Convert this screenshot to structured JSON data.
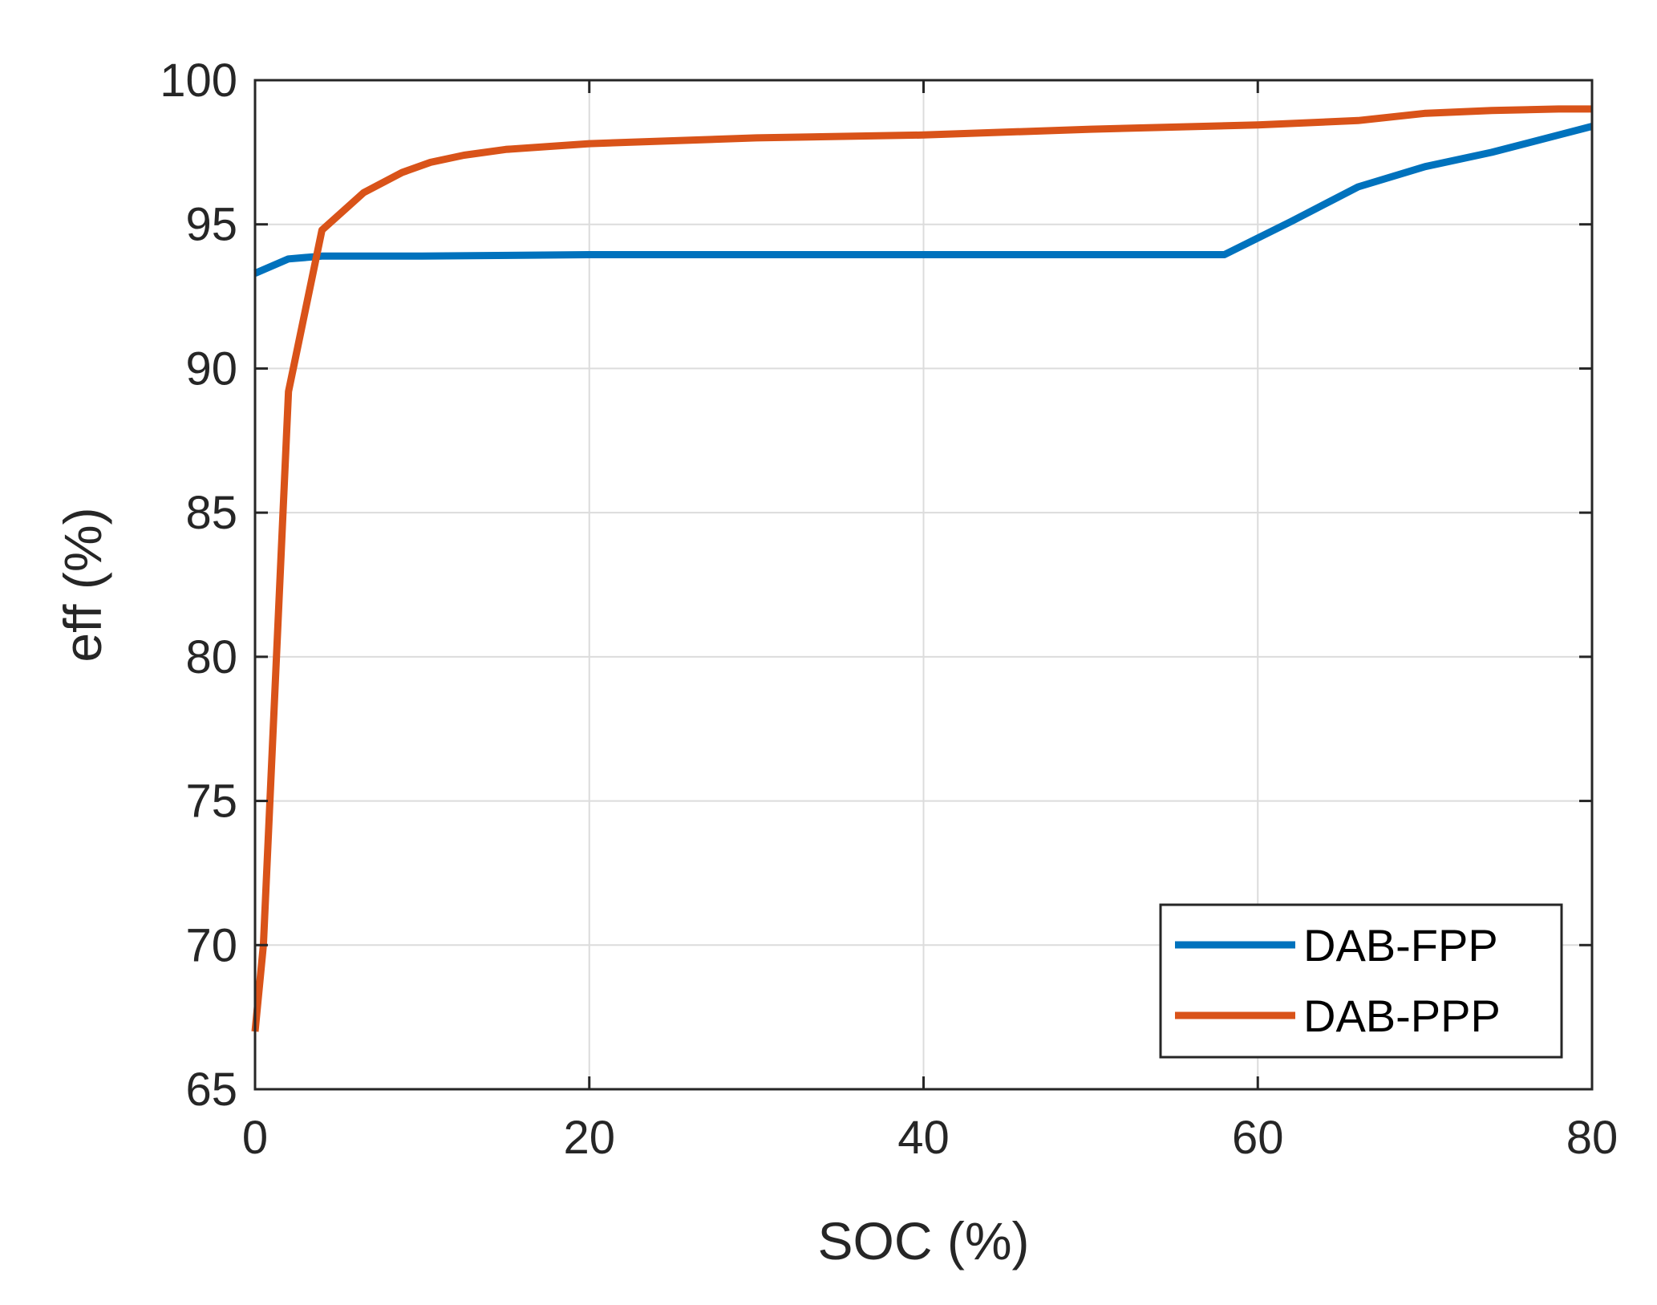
{
  "chart_data": {
    "type": "line",
    "title": "",
    "xlabel": "SOC (%)",
    "ylabel": "eff (%)",
    "xlim": [
      0,
      80
    ],
    "ylim": [
      65,
      100
    ],
    "xticks": [
      0,
      20,
      40,
      60,
      80
    ],
    "yticks": [
      65,
      70,
      75,
      80,
      85,
      90,
      95,
      100
    ],
    "xtick_labels": [
      "0",
      "20",
      "40",
      "60",
      "80"
    ],
    "ytick_labels": [
      "65",
      "70",
      "75",
      "80",
      "85",
      "90",
      "95",
      "100"
    ],
    "grid": true,
    "legend_position": "bottom-right",
    "series": [
      {
        "name": "DAB-FPP",
        "color": "#0072bd",
        "x": [
          0,
          2,
          4,
          6,
          10,
          20,
          30,
          40,
          50,
          58,
          62,
          66,
          70,
          74,
          78,
          80
        ],
        "y": [
          93.3,
          93.8,
          93.9,
          93.9,
          93.9,
          93.95,
          93.95,
          93.95,
          93.95,
          93.95,
          95.1,
          96.3,
          97.0,
          97.5,
          98.1,
          98.4
        ]
      },
      {
        "name": "DAB-PPP",
        "color": "#d95319",
        "x": [
          0,
          0.5,
          2,
          4,
          6.5,
          8.8,
          10.5,
          12.5,
          15,
          20,
          30,
          40,
          50,
          60,
          66,
          70,
          74,
          78,
          80
        ],
        "y": [
          67.0,
          70.0,
          89.2,
          94.8,
          96.1,
          96.8,
          97.15,
          97.4,
          97.6,
          97.8,
          98.0,
          98.1,
          98.3,
          98.45,
          98.6,
          98.85,
          98.95,
          99.0,
          99.0
        ]
      }
    ]
  }
}
